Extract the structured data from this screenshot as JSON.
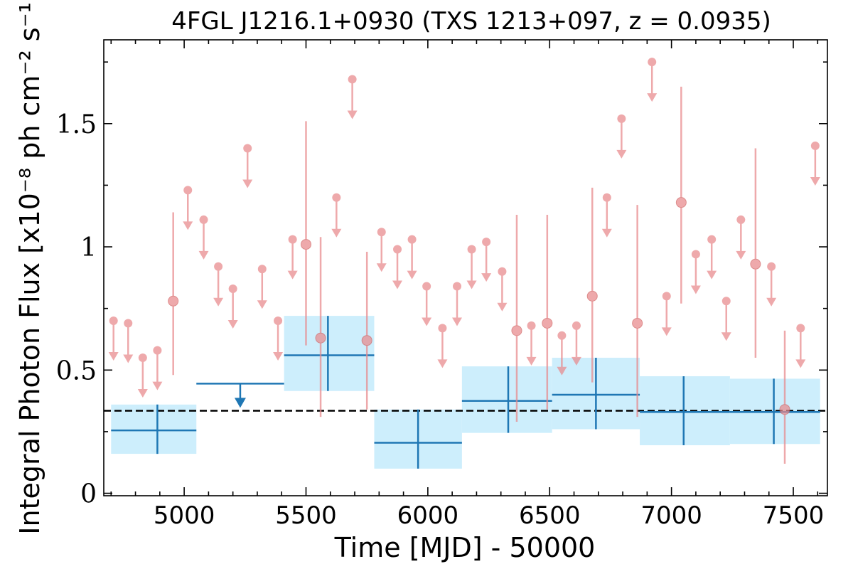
{
  "chart_data": {
    "type": "scatter",
    "title": "4FGL J1216.1+0930 (TXS 1213+097, z = 0.0935)",
    "xlabel": "Time [MJD] - 50000",
    "ylabel": "Integral Photon Flux [x10⁻⁸ ph cm⁻² s⁻¹]",
    "xlim": [
      4670,
      7640
    ],
    "ylim": [
      -0.01,
      1.84
    ],
    "xticks": [
      "5000",
      "5500",
      "6000",
      "6500",
      "7000",
      "7500"
    ],
    "yticks": [
      "0",
      "0.5",
      "1",
      "1.5"
    ],
    "mean_flux_line": 0.335,
    "colors": {
      "short_bins": "#e8898c",
      "long_bins": "#1f77b4",
      "band_fill": "#cdeefc",
      "mean_line": "#000000"
    },
    "long_bins": [
      {
        "x": 4890,
        "x_lo": 4700,
        "x_hi": 5050,
        "y": 0.255,
        "y_lo": 0.16,
        "y_hi": 0.36,
        "upper_limit": false
      },
      {
        "x": 5230,
        "x_lo": 5050,
        "x_hi": 5410,
        "y": 0.445,
        "upper_limit": true
      },
      {
        "x": 5590,
        "x_lo": 5410,
        "x_hi": 5780,
        "y": 0.56,
        "y_lo": 0.415,
        "y_hi": 0.72,
        "upper_limit": false
      },
      {
        "x": 5960,
        "x_lo": 5780,
        "x_hi": 6140,
        "y": 0.205,
        "y_lo": 0.1,
        "y_hi": 0.34,
        "upper_limit": false
      },
      {
        "x": 6330,
        "x_lo": 6140,
        "x_hi": 6510,
        "y": 0.375,
        "y_lo": 0.245,
        "y_hi": 0.515,
        "upper_limit": false
      },
      {
        "x": 6690,
        "x_lo": 6510,
        "x_hi": 6870,
        "y": 0.4,
        "y_lo": 0.26,
        "y_hi": 0.55,
        "upper_limit": false
      },
      {
        "x": 7050,
        "x_lo": 6870,
        "x_hi": 7240,
        "y": 0.33,
        "y_lo": 0.195,
        "y_hi": 0.475,
        "upper_limit": false
      },
      {
        "x": 7420,
        "x_lo": 7240,
        "x_hi": 7610,
        "y": 0.33,
        "y_lo": 0.2,
        "y_hi": 0.465,
        "upper_limit": false
      }
    ],
    "short_bins": [
      {
        "x": 4710,
        "y": 0.7,
        "upper_limit": true
      },
      {
        "x": 4770,
        "y": 0.69,
        "upper_limit": true
      },
      {
        "x": 4830,
        "y": 0.55,
        "upper_limit": true
      },
      {
        "x": 4890,
        "y": 0.58,
        "upper_limit": true
      },
      {
        "x": 4955,
        "y": 0.78,
        "y_lo": 0.48,
        "y_hi": 1.14,
        "upper_limit": false
      },
      {
        "x": 5015,
        "y": 1.23,
        "upper_limit": true
      },
      {
        "x": 5080,
        "y": 1.11,
        "upper_limit": true
      },
      {
        "x": 5140,
        "y": 0.92,
        "upper_limit": true
      },
      {
        "x": 5200,
        "y": 0.83,
        "upper_limit": true
      },
      {
        "x": 5260,
        "y": 1.4,
        "upper_limit": true
      },
      {
        "x": 5320,
        "y": 0.91,
        "upper_limit": true
      },
      {
        "x": 5385,
        "y": 0.7,
        "upper_limit": true
      },
      {
        "x": 5445,
        "y": 1.03,
        "upper_limit": true
      },
      {
        "x": 5500,
        "y": 1.01,
        "y_lo": 0.6,
        "y_hi": 1.51,
        "upper_limit": false
      },
      {
        "x": 5560,
        "y": 0.63,
        "y_lo": 0.31,
        "y_hi": 1.04,
        "upper_limit": false
      },
      {
        "x": 5625,
        "y": 1.2,
        "upper_limit": true
      },
      {
        "x": 5690,
        "y": 1.68,
        "upper_limit": true
      },
      {
        "x": 5750,
        "y": 0.62,
        "y_lo": 0.34,
        "y_hi": 0.98,
        "upper_limit": false
      },
      {
        "x": 5810,
        "y": 1.06,
        "upper_limit": true
      },
      {
        "x": 5875,
        "y": 0.99,
        "upper_limit": true
      },
      {
        "x": 5935,
        "y": 1.03,
        "upper_limit": true
      },
      {
        "x": 5995,
        "y": 0.84,
        "upper_limit": true
      },
      {
        "x": 6060,
        "y": 0.67,
        "upper_limit": true
      },
      {
        "x": 6120,
        "y": 0.84,
        "upper_limit": true
      },
      {
        "x": 6180,
        "y": 0.99,
        "upper_limit": true
      },
      {
        "x": 6240,
        "y": 1.02,
        "upper_limit": true
      },
      {
        "x": 6305,
        "y": 0.9,
        "upper_limit": true
      },
      {
        "x": 6365,
        "y": 0.66,
        "y_lo": 0.29,
        "y_hi": 1.13,
        "upper_limit": false
      },
      {
        "x": 6425,
        "y": 0.68,
        "upper_limit": true
      },
      {
        "x": 6490,
        "y": 0.69,
        "y_lo": 0.34,
        "y_hi": 1.13,
        "upper_limit": false
      },
      {
        "x": 6550,
        "y": 0.64,
        "upper_limit": true
      },
      {
        "x": 6610,
        "y": 0.68,
        "upper_limit": true
      },
      {
        "x": 6675,
        "y": 0.8,
        "y_lo": 0.45,
        "y_hi": 1.24,
        "upper_limit": false
      },
      {
        "x": 6735,
        "y": 1.2,
        "upper_limit": true
      },
      {
        "x": 6795,
        "y": 1.52,
        "upper_limit": true
      },
      {
        "x": 6860,
        "y": 0.69,
        "y_lo": 0.31,
        "y_hi": 1.17,
        "upper_limit": false
      },
      {
        "x": 6920,
        "y": 1.75,
        "upper_limit": true
      },
      {
        "x": 6980,
        "y": 0.8,
        "upper_limit": true
      },
      {
        "x": 7040,
        "y": 1.18,
        "y_lo": 0.77,
        "y_hi": 1.65,
        "upper_limit": false
      },
      {
        "x": 7100,
        "y": 0.97,
        "upper_limit": true
      },
      {
        "x": 7165,
        "y": 1.03,
        "upper_limit": true
      },
      {
        "x": 7225,
        "y": 0.78,
        "upper_limit": true
      },
      {
        "x": 7285,
        "y": 1.11,
        "upper_limit": true
      },
      {
        "x": 7345,
        "y": 0.93,
        "y_lo": 0.55,
        "y_hi": 1.4,
        "upper_limit": false
      },
      {
        "x": 7410,
        "y": 0.92,
        "upper_limit": true
      },
      {
        "x": 7465,
        "y": 0.34,
        "y_lo": 0.12,
        "y_hi": 0.66,
        "upper_limit": false
      },
      {
        "x": 7530,
        "y": 0.67,
        "upper_limit": true
      },
      {
        "x": 7590,
        "y": 1.41,
        "upper_limit": true
      }
    ]
  }
}
